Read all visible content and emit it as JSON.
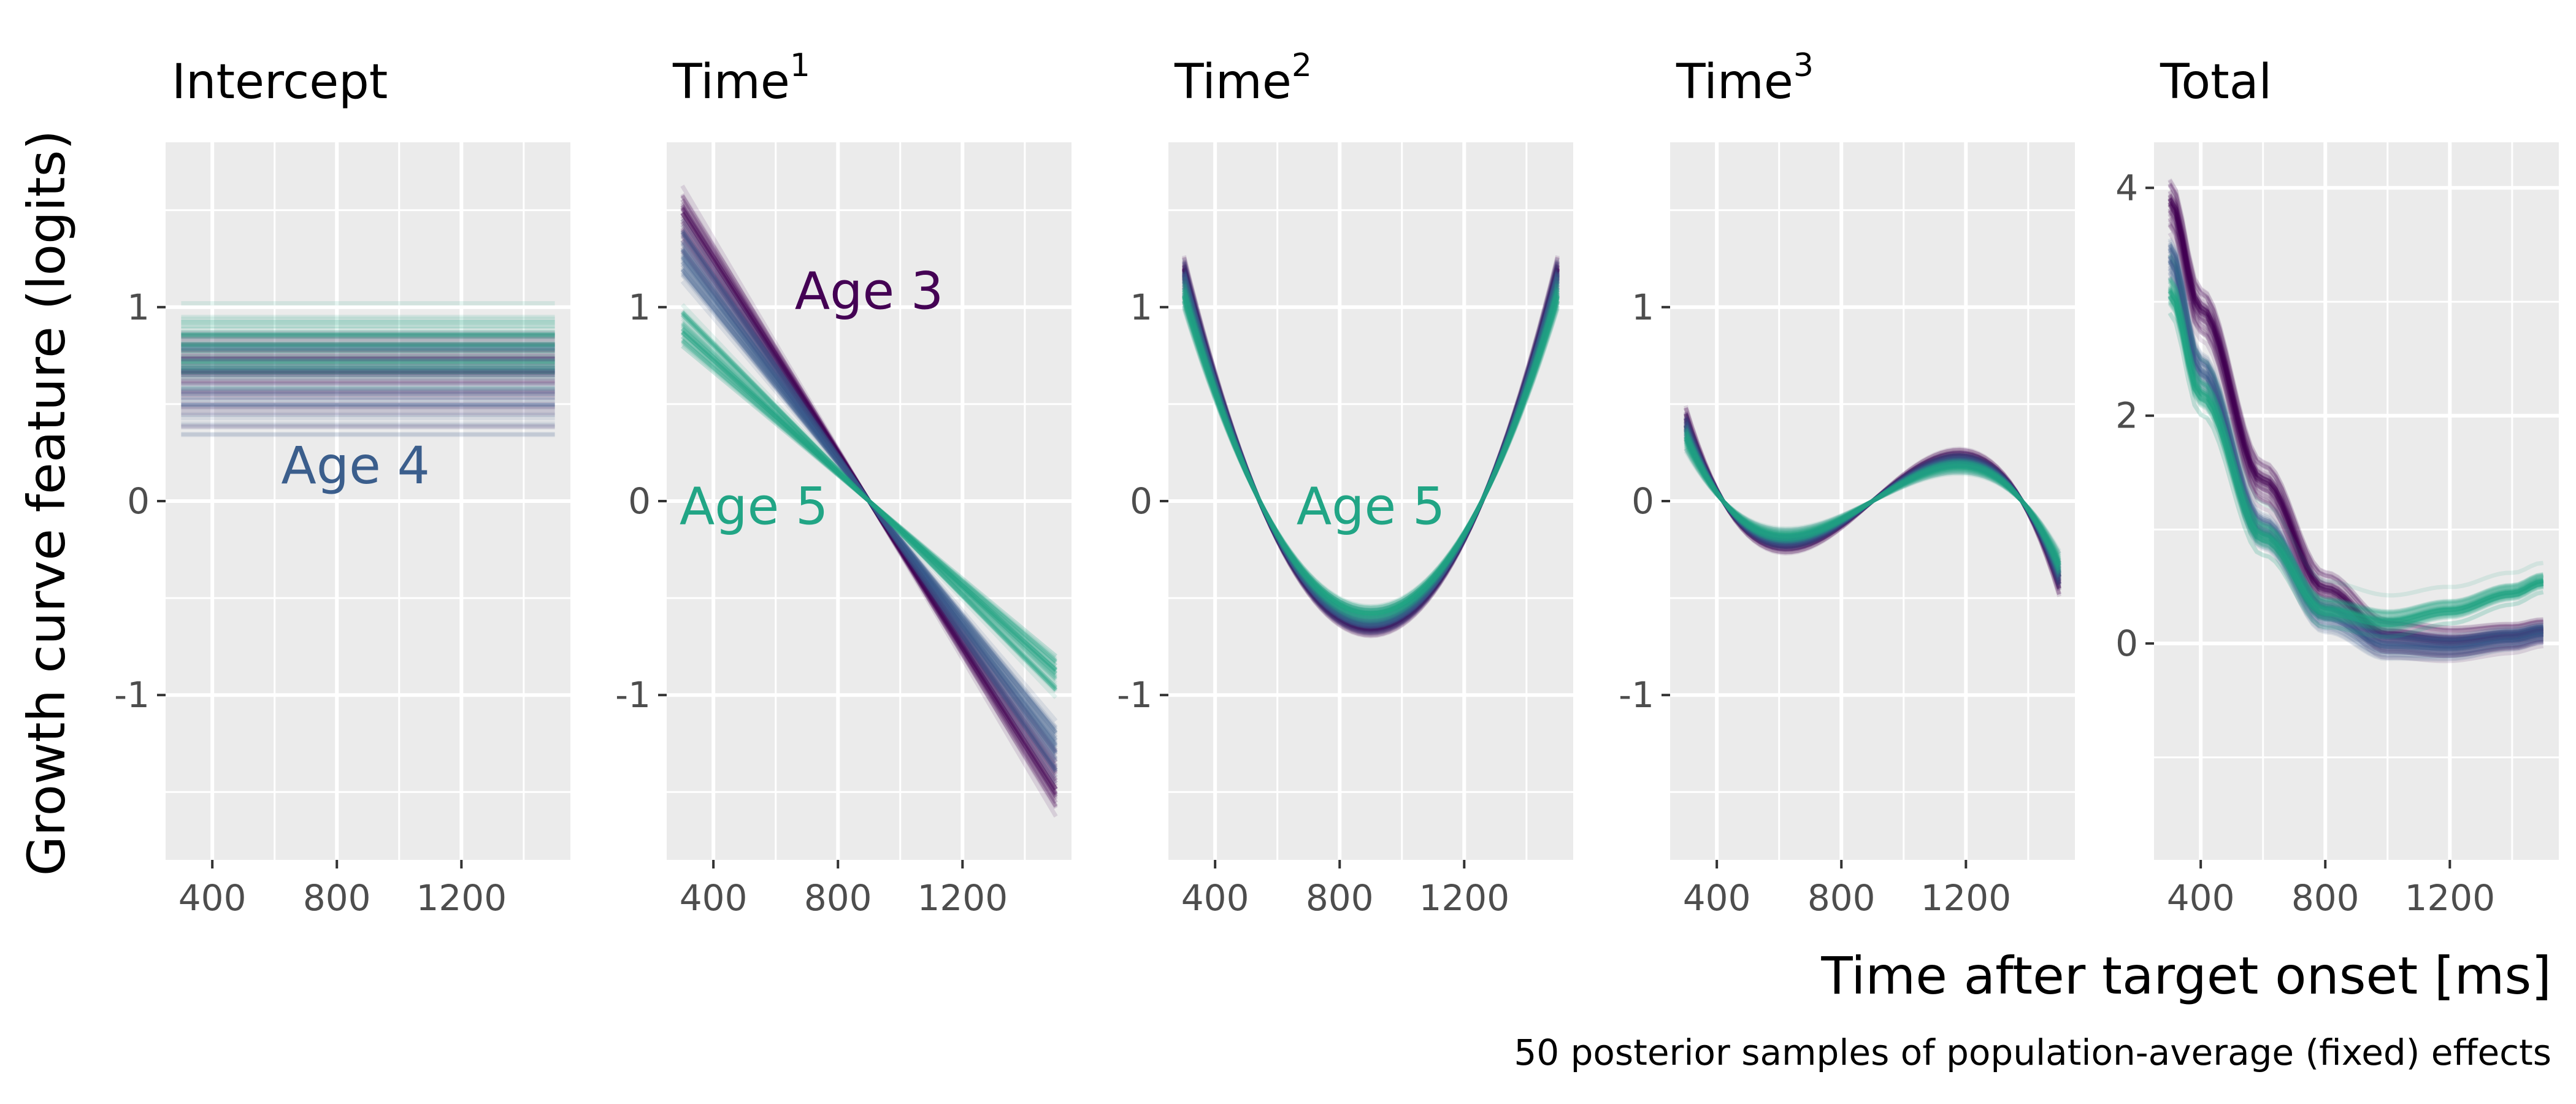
{
  "figure": {
    "ylabel": "Growth curve feature (logits)",
    "xlabel": "Time after target onset [ms]",
    "caption": "50 posterior samples of population-average (fixed) effects"
  },
  "colors": {
    "panel_bg": "#ebebeb",
    "grid": "#ffffff",
    "age3": "#440154",
    "age4": "#3b5e8c",
    "age5": "#21a585"
  },
  "chart_data": [
    {
      "type": "line",
      "panel": "intercept",
      "title": "Intercept",
      "title_sup": "",
      "xlim": [
        250,
        1550
      ],
      "ylim": [
        -1.85,
        1.85
      ],
      "x_ticks": [
        400,
        800,
        1200
      ],
      "y_ticks": [
        1,
        0,
        -1
      ],
      "y_tick_labels": [
        "1",
        "0",
        "-1"
      ],
      "samples_per_series": 50,
      "series": [
        {
          "group": "age3",
          "curve": "constant",
          "center": 0.7,
          "spread": 0.15
        },
        {
          "group": "age4",
          "curve": "constant",
          "center": 0.6,
          "spread": 0.16
        },
        {
          "group": "age5",
          "curve": "constant",
          "center": 0.78,
          "spread": 0.12
        }
      ],
      "annotations": [
        {
          "text": "Age 4",
          "group": "age4",
          "x": 860,
          "y": 0.18
        }
      ]
    },
    {
      "type": "line",
      "panel": "time1",
      "title": "Time",
      "title_sup": "1",
      "xlim": [
        250,
        1550
      ],
      "ylim": [
        -1.85,
        1.85
      ],
      "x_ticks": [
        400,
        800,
        1200
      ],
      "y_ticks": [
        1,
        0,
        -1
      ],
      "y_tick_labels": [
        "1",
        "0",
        "-1"
      ],
      "samples_per_series": 50,
      "series": [
        {
          "group": "age3",
          "curve": "linear",
          "pivot": 900,
          "slope_per_ms": -0.00246,
          "spread_slope": 0.00018
        },
        {
          "group": "age4",
          "curve": "linear",
          "pivot": 900,
          "slope_per_ms": -0.00213,
          "spread_slope": 0.00016
        },
        {
          "group": "age5",
          "curve": "linear",
          "pivot": 900,
          "slope_per_ms": -0.0015,
          "spread_slope": 0.00014
        }
      ],
      "annotations": [
        {
          "text": "Age 3",
          "group": "age3",
          "x": 900,
          "y": 1.08
        },
        {
          "text": "Age 5",
          "group": "age5",
          "x": 530,
          "y": -0.03
        }
      ]
    },
    {
      "type": "line",
      "panel": "time2",
      "title": "Time",
      "title_sup": "2",
      "xlim": [
        250,
        1550
      ],
      "ylim": [
        -1.85,
        1.85
      ],
      "x_ticks": [
        400,
        800,
        1200
      ],
      "y_ticks": [
        1,
        0,
        -1
      ],
      "y_tick_labels": [
        "1",
        "0",
        "-1"
      ],
      "samples_per_series": 50,
      "series": [
        {
          "group": "age3",
          "curve": "quadratic",
          "x_min": 900,
          "y_min": -0.66,
          "y_at_300": 1.2,
          "spread": 0.04
        },
        {
          "group": "age4",
          "curve": "quadratic",
          "x_min": 900,
          "y_min": -0.63,
          "y_at_300": 1.15,
          "spread": 0.04
        },
        {
          "group": "age5",
          "curve": "quadratic",
          "x_min": 900,
          "y_min": -0.58,
          "y_at_300": 1.06,
          "spread": 0.04
        }
      ],
      "annotations": [
        {
          "text": "Age 5",
          "group": "age5",
          "x": 900,
          "y": -0.03
        }
      ]
    },
    {
      "type": "line",
      "panel": "time3",
      "title": "Time",
      "title_sup": "3",
      "xlim": [
        250,
        1550
      ],
      "ylim": [
        -1.85,
        1.85
      ],
      "x_ticks": [
        400,
        800,
        1200
      ],
      "y_ticks": [
        1,
        0,
        -1
      ],
      "y_tick_labels": [
        "1",
        "0",
        "-1"
      ],
      "samples_per_series": 50,
      "series": [
        {
          "group": "age3",
          "curve": "cubic",
          "y_at_300": 0.42,
          "y_at_1500": -0.4,
          "spread": 0.035
        },
        {
          "group": "age4",
          "curve": "cubic",
          "y_at_300": 0.38,
          "y_at_1500": -0.37,
          "spread": 0.035
        },
        {
          "group": "age5",
          "curve": "cubic",
          "y_at_300": 0.33,
          "y_at_1500": -0.32,
          "spread": 0.035
        }
      ],
      "annotations": []
    },
    {
      "type": "line",
      "panel": "total",
      "title": "Total",
      "title_sup": "",
      "xlim": [
        250,
        1550
      ],
      "ylim": [
        -1.9,
        4.4
      ],
      "x_ticks": [
        400,
        800,
        1200
      ],
      "y_ticks": [
        4,
        2,
        0
      ],
      "y_tick_labels": [
        "4",
        "2",
        "0"
      ],
      "samples_per_series": 50,
      "series": [
        {
          "group": "age3",
          "curve": "knots",
          "x": [
            300,
            400,
            600,
            800,
            1000,
            1200,
            1400,
            1500
          ],
          "y": [
            3.85,
            2.9,
            1.4,
            0.45,
            0.05,
            0.0,
            0.05,
            0.1
          ],
          "spread": 0.12
        },
        {
          "group": "age4",
          "curve": "knots",
          "x": [
            300,
            400,
            600,
            800,
            1000,
            1200,
            1400,
            1500
          ],
          "y": [
            3.4,
            2.4,
            1.0,
            0.25,
            0.0,
            -0.02,
            0.05,
            0.1
          ],
          "spread": 0.12
        },
        {
          "group": "age5",
          "curve": "knots",
          "x": [
            300,
            400,
            600,
            800,
            1000,
            1200,
            1400,
            1500
          ],
          "y": [
            3.1,
            2.2,
            0.95,
            0.3,
            0.2,
            0.3,
            0.45,
            0.55
          ],
          "spread": 0.12
        }
      ],
      "annotations": []
    }
  ]
}
